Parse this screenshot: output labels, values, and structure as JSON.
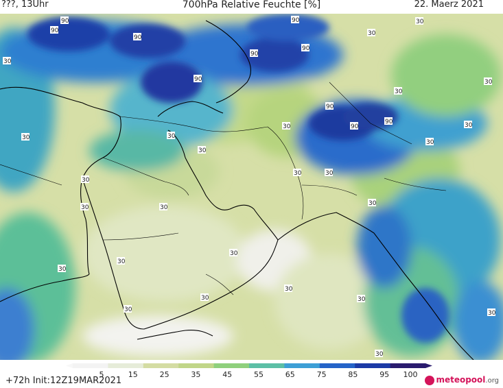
{
  "header": {
    "left": "???, 13Uhr",
    "title": "700hPa Relative Feuchte [%]",
    "date": "22. Maerz 2021"
  },
  "map_labels": {
    "l90": "90",
    "l30": "30"
  },
  "colorbar": {
    "ticks": [
      "5",
      "15",
      "25",
      "35",
      "45",
      "55",
      "65",
      "75",
      "85",
      "95",
      "100"
    ],
    "colors": [
      "#ffffff",
      "#f3f3f3",
      "#e6ecd9",
      "#d4dca3",
      "#c1d689",
      "#8fd07d",
      "#5cbfa6",
      "#3d9fd6",
      "#2563c8",
      "#1c3aa6",
      "#2a1b6e"
    ]
  },
  "footer": {
    "init": "+72h Init:12Z19MAR2021",
    "logo": "meteopool",
    "logo_tld": ".org"
  }
}
